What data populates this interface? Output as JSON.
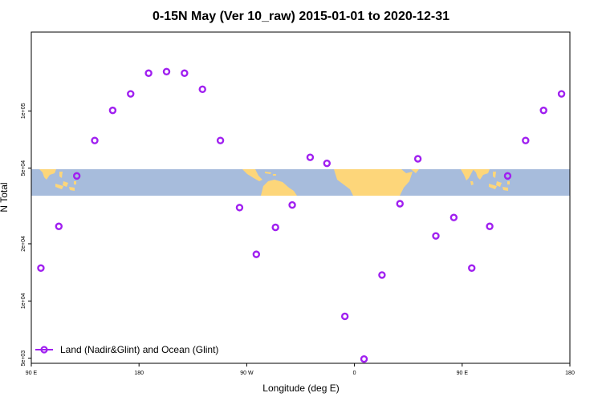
{
  "chart_data": {
    "type": "scatter",
    "title": "0-15N May (Ver 10_raw)   2015-01-01 to 2020-12-31",
    "xlabel": "Longitude (deg E)",
    "ylabel": "N Total",
    "x_ticks": [
      {
        "value": 90,
        "label": "90 E"
      },
      {
        "value": 180,
        "label": "180"
      },
      {
        "value": 270,
        "label": "90 W"
      },
      {
        "value": 360,
        "label": "0"
      },
      {
        "value": 450,
        "label": "90 E"
      },
      {
        "value": 540,
        "label": "180"
      }
    ],
    "y_ticks": [
      {
        "value": 5000,
        "label": "5e+03"
      },
      {
        "value": 10000,
        "label": "1e+04"
      },
      {
        "value": 20000,
        "label": "2e+04"
      },
      {
        "value": 50000,
        "label": "5e+04"
      },
      {
        "value": 100000,
        "label": "1e+05"
      }
    ],
    "xlim": [
      90,
      540
    ],
    "ylim": [
      4700,
      260000
    ],
    "y_scale": "log",
    "marker_color": "#a020f0",
    "ocean_color": "#a7bcdc",
    "land_color": "#fdd67a",
    "legend": {
      "position": "bottom-left",
      "label": "Land (Nadir&Glint) and Ocean (Glint)"
    },
    "series": [
      {
        "name": "Land (Nadir&Glint) and Ocean (Glint)",
        "points": [
          {
            "x": 98,
            "y": 14900
          },
          {
            "x": 113,
            "y": 24700
          },
          {
            "x": 128,
            "y": 45500
          },
          {
            "x": 143,
            "y": 69900
          },
          {
            "x": 158,
            "y": 100700
          },
          {
            "x": 173,
            "y": 123000
          },
          {
            "x": 188,
            "y": 158000
          },
          {
            "x": 203,
            "y": 161000
          },
          {
            "x": 218,
            "y": 158000
          },
          {
            "x": 233,
            "y": 130000
          },
          {
            "x": 248,
            "y": 69900
          },
          {
            "x": 264,
            "y": 31000
          },
          {
            "x": 278,
            "y": 17600
          },
          {
            "x": 294,
            "y": 24400
          },
          {
            "x": 308,
            "y": 32000
          },
          {
            "x": 323,
            "y": 57000
          },
          {
            "x": 337,
            "y": 53000
          },
          {
            "x": 352,
            "y": 8300
          },
          {
            "x": 368,
            "y": 4950
          },
          {
            "x": 383,
            "y": 13700
          },
          {
            "x": 398,
            "y": 32500
          },
          {
            "x": 413,
            "y": 56000
          },
          {
            "x": 428,
            "y": 22000
          },
          {
            "x": 443,
            "y": 27500
          },
          {
            "x": 458,
            "y": 14900
          },
          {
            "x": 473,
            "y": 24700
          },
          {
            "x": 488,
            "y": 45500
          },
          {
            "x": 503,
            "y": 69900
          },
          {
            "x": 518,
            "y": 100700
          },
          {
            "x": 533,
            "y": 123000
          }
        ]
      }
    ]
  }
}
